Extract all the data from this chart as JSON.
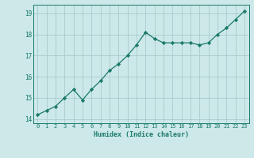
{
  "x": [
    0,
    1,
    2,
    3,
    4,
    5,
    6,
    7,
    8,
    9,
    10,
    11,
    12,
    13,
    14,
    15,
    16,
    17,
    18,
    19,
    20,
    21,
    22,
    23
  ],
  "y": [
    14.2,
    14.4,
    14.6,
    15.0,
    15.4,
    14.9,
    15.4,
    15.8,
    16.3,
    16.6,
    17.0,
    17.5,
    18.1,
    17.8,
    17.6,
    17.6,
    17.6,
    17.6,
    17.5,
    17.6,
    18.0,
    18.3,
    18.7,
    19.1
  ],
  "xlabel": "Humidex (Indice chaleur)",
  "xlim": [
    -0.5,
    23.5
  ],
  "ylim": [
    13.8,
    19.4
  ],
  "yticks": [
    14,
    15,
    16,
    17,
    18,
    19
  ],
  "xticks": [
    0,
    1,
    2,
    3,
    4,
    5,
    6,
    7,
    8,
    9,
    10,
    11,
    12,
    13,
    14,
    15,
    16,
    17,
    18,
    19,
    20,
    21,
    22,
    23
  ],
  "line_color": "#1a7a6a",
  "marker_color": "#1a7a6a",
  "bg_color": "#cce8e8",
  "grid_color": "#aacccc",
  "tick_color": "#1a7a6a",
  "label_color": "#1a7a6a"
}
